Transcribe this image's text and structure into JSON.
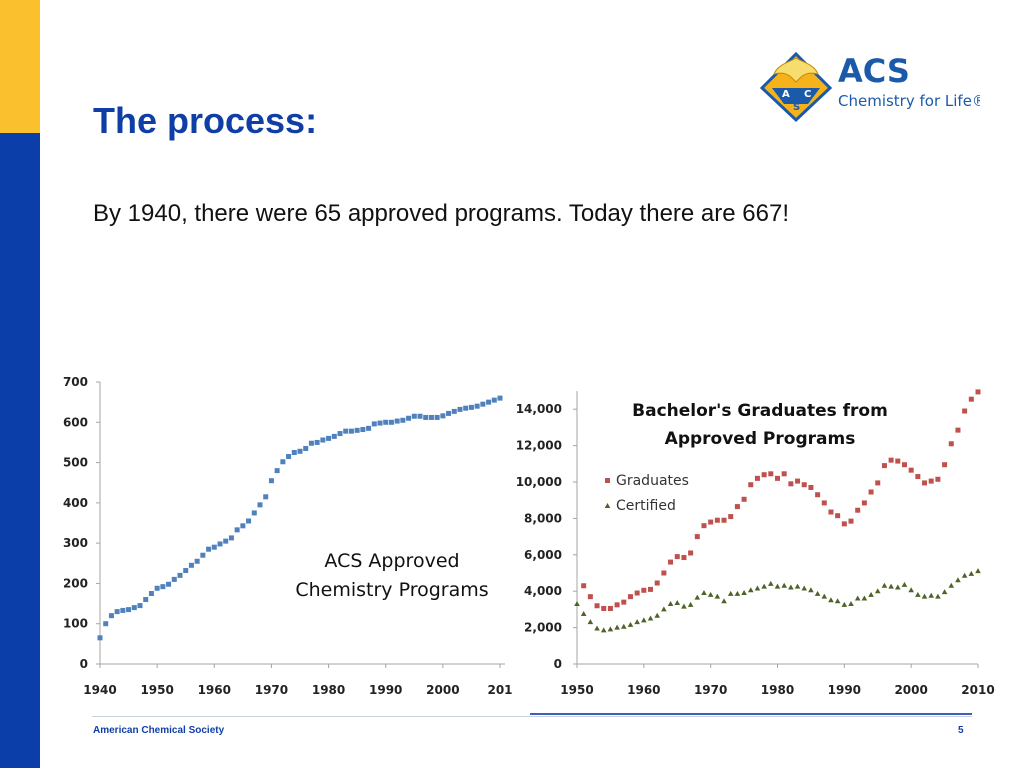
{
  "slide": {
    "title": "The process:",
    "subtitle": "By 1940, there were 65 approved programs.  Today there are 667!",
    "footer_org": "American Chemical Society",
    "page_number": "5"
  },
  "logo": {
    "name": "ACS",
    "tagline": "Chemistry for Life®",
    "letters": [
      "A",
      "C",
      "S"
    ],
    "colors": {
      "gold": "#f5b21b",
      "blue": "#1a5aa8"
    }
  },
  "chart_data": [
    {
      "type": "scatter",
      "title": "ACS Approved Chemistry Programs",
      "x_ticks": [
        "1940",
        "1950",
        "1960",
        "1970",
        "1980",
        "1990",
        "2000",
        "201"
      ],
      "y_ticks": [
        "0",
        "100",
        "200",
        "300",
        "400",
        "500",
        "600",
        "700"
      ],
      "xlim": [
        1940,
        2010
      ],
      "ylim": [
        0,
        700
      ],
      "grid": false,
      "color": "#4f81bd",
      "x": [
        1940,
        1941,
        1942,
        1943,
        1944,
        1945,
        1946,
        1947,
        1948,
        1949,
        1950,
        1951,
        1952,
        1953,
        1954,
        1955,
        1956,
        1957,
        1958,
        1959,
        1960,
        1961,
        1962,
        1963,
        1964,
        1965,
        1966,
        1967,
        1968,
        1969,
        1970,
        1971,
        1972,
        1973,
        1974,
        1975,
        1976,
        1977,
        1978,
        1979,
        1980,
        1981,
        1982,
        1983,
        1984,
        1985,
        1986,
        1987,
        1988,
        1989,
        1990,
        1991,
        1992,
        1993,
        1994,
        1995,
        1996,
        1997,
        1998,
        1999,
        2000,
        2001,
        2002,
        2003,
        2004,
        2005,
        2006,
        2007,
        2008,
        2009,
        2010
      ],
      "y": [
        65,
        100,
        120,
        130,
        133,
        135,
        140,
        145,
        160,
        175,
        188,
        192,
        198,
        210,
        220,
        232,
        245,
        255,
        270,
        285,
        290,
        298,
        305,
        313,
        333,
        343,
        355,
        375,
        395,
        415,
        455,
        480,
        502,
        515,
        525,
        528,
        535,
        548,
        550,
        556,
        560,
        565,
        572,
        578,
        578,
        580,
        582,
        585,
        596,
        598,
        600,
        600,
        603,
        605,
        610,
        615,
        615,
        612,
        612,
        612,
        616,
        622,
        627,
        632,
        635,
        637,
        640,
        645,
        650,
        655,
        660
      ]
    },
    {
      "type": "scatter",
      "title": "Bachelor's Graduates from Approved Programs",
      "x_ticks": [
        "1950",
        "1960",
        "1970",
        "1980",
        "1990",
        "2000",
        "2010"
      ],
      "y_ticks": [
        "0",
        "2,000",
        "4,000",
        "6,000",
        "8,000",
        "10,000",
        "12,000",
        "14,000"
      ],
      "xlim": [
        1950,
        2010
      ],
      "ylim": [
        0,
        15000
      ],
      "grid": false,
      "legend": "top-left",
      "x": [
        1950,
        1951,
        1952,
        1953,
        1954,
        1955,
        1956,
        1957,
        1958,
        1959,
        1960,
        1961,
        1962,
        1963,
        1964,
        1965,
        1966,
        1967,
        1968,
        1969,
        1970,
        1971,
        1972,
        1973,
        1974,
        1975,
        1976,
        1977,
        1978,
        1979,
        1980,
        1981,
        1982,
        1983,
        1984,
        1985,
        1986,
        1987,
        1988,
        1989,
        1990,
        1991,
        1992,
        1993,
        1994,
        1995,
        1996,
        1997,
        1998,
        1999,
        2000,
        2001,
        2002,
        2003,
        2004,
        2005,
        2006,
        2007,
        2008,
        2009,
        2010
      ],
      "series": [
        {
          "name": "Graduates",
          "color": "#c0504d",
          "marker": "square",
          "values": [
            null,
            4300,
            3700,
            3200,
            3050,
            3050,
            3250,
            3400,
            3700,
            3900,
            4050,
            4100,
            4450,
            5000,
            5600,
            5900,
            5850,
            6100,
            7000,
            7600,
            7800,
            7900,
            7900,
            8100,
            8650,
            9050,
            9850,
            10200,
            10400,
            10450,
            10200,
            10450,
            9900,
            10050,
            9850,
            9700,
            9300,
            8850,
            8350,
            8150,
            7700,
            7850,
            8450,
            8850,
            9450,
            9950,
            10900,
            11200,
            11150,
            10950,
            10650,
            10300,
            9950,
            10050,
            10150,
            10950,
            12100,
            12850,
            13900,
            14550,
            14950
          ]
        },
        {
          "name": "Certified",
          "color": "#4f6228",
          "marker": "triangle",
          "values": [
            3300,
            2750,
            2300,
            1950,
            1850,
            1900,
            2000,
            2050,
            2150,
            2300,
            2400,
            2500,
            2650,
            3000,
            3300,
            3350,
            3150,
            3250,
            3650,
            3900,
            3800,
            3700,
            3450,
            3850,
            3850,
            3900,
            4050,
            4150,
            4250,
            4400,
            4250,
            4300,
            4200,
            4250,
            4150,
            4050,
            3850,
            3700,
            3500,
            3450,
            3250,
            3300,
            3600,
            3600,
            3800,
            4000,
            4300,
            4250,
            4200,
            4350,
            4050,
            3800,
            3700,
            3750,
            3700,
            3950,
            4300,
            4600,
            4850,
            4950,
            5100
          ]
        }
      ]
    }
  ]
}
